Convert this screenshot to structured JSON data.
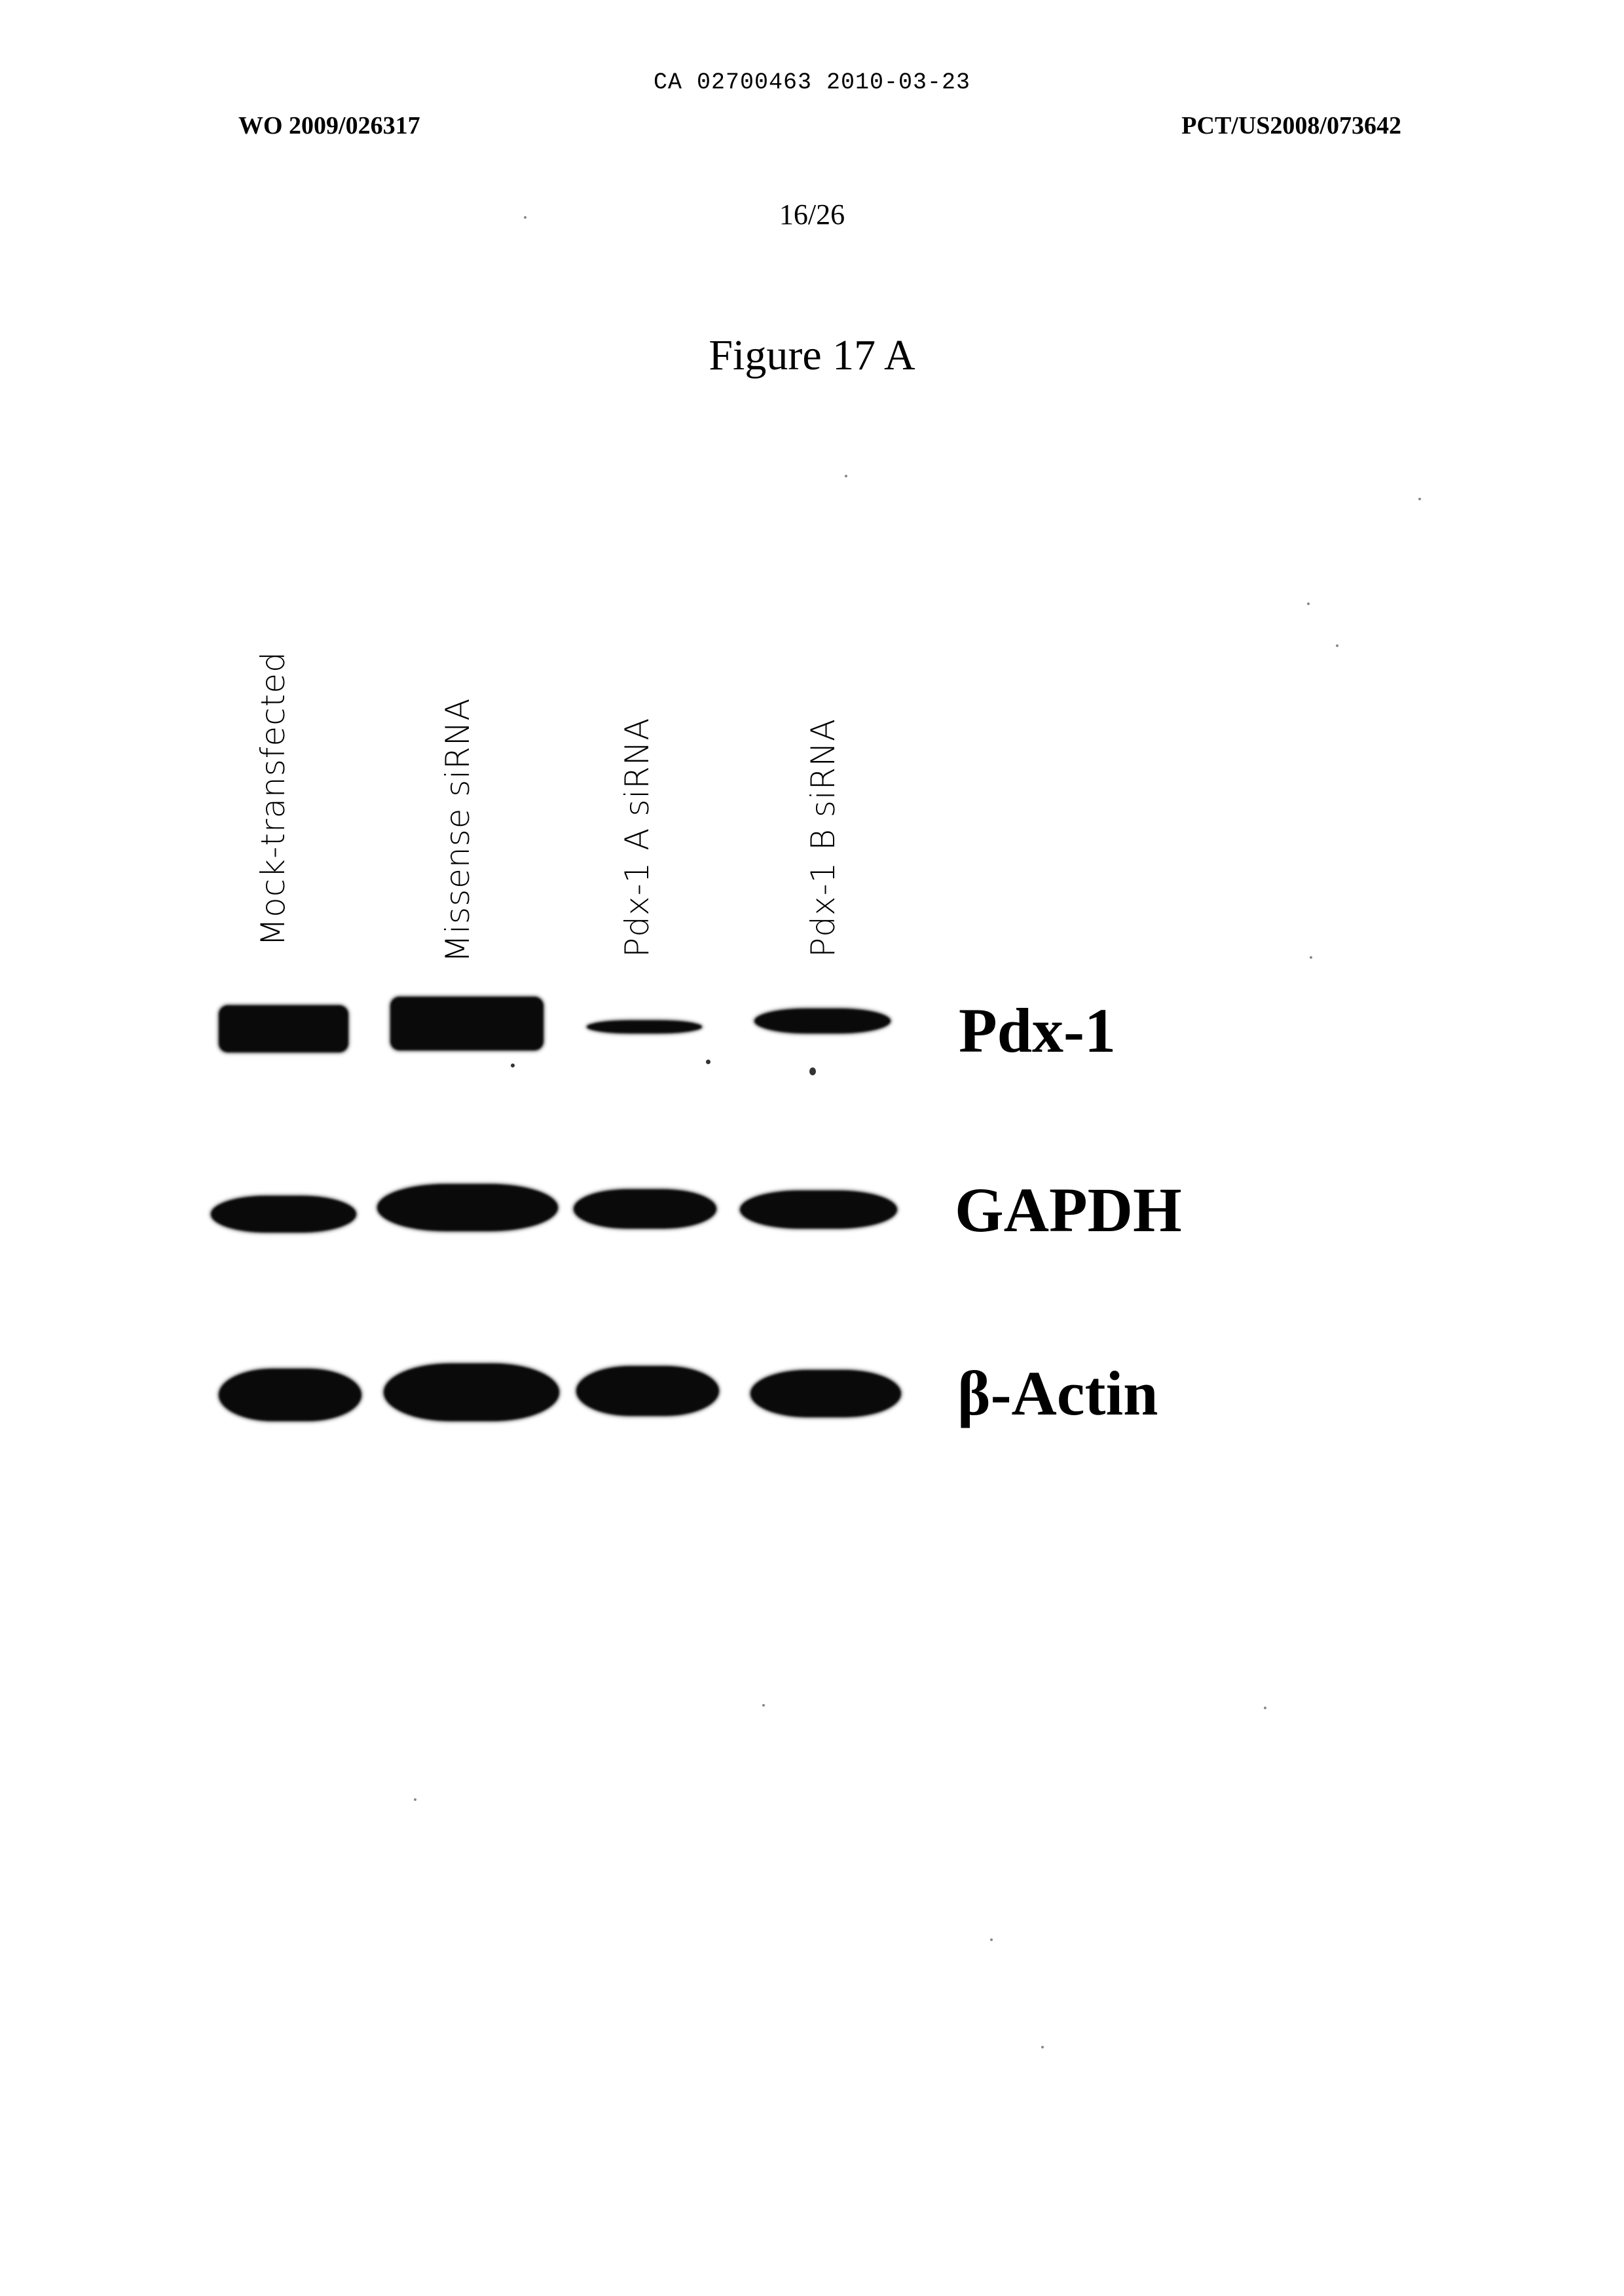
{
  "header": {
    "ca_line": "CA 02700463 2010-03-23",
    "wo_number": "WO 2009/026317",
    "pct_number": "PCT/US2008/073642",
    "page_number": "16/26"
  },
  "figure": {
    "title": "Figure 17 A",
    "lanes": [
      "Mock-transfected",
      "Missense siRNA",
      "Pdx-1 A siRNA",
      "Pdx-1 B siRNA"
    ],
    "blot_labels": {
      "pdx1": "Pdx-1",
      "gapdh": "GAPDH",
      "actin": "β-Actin"
    }
  }
}
